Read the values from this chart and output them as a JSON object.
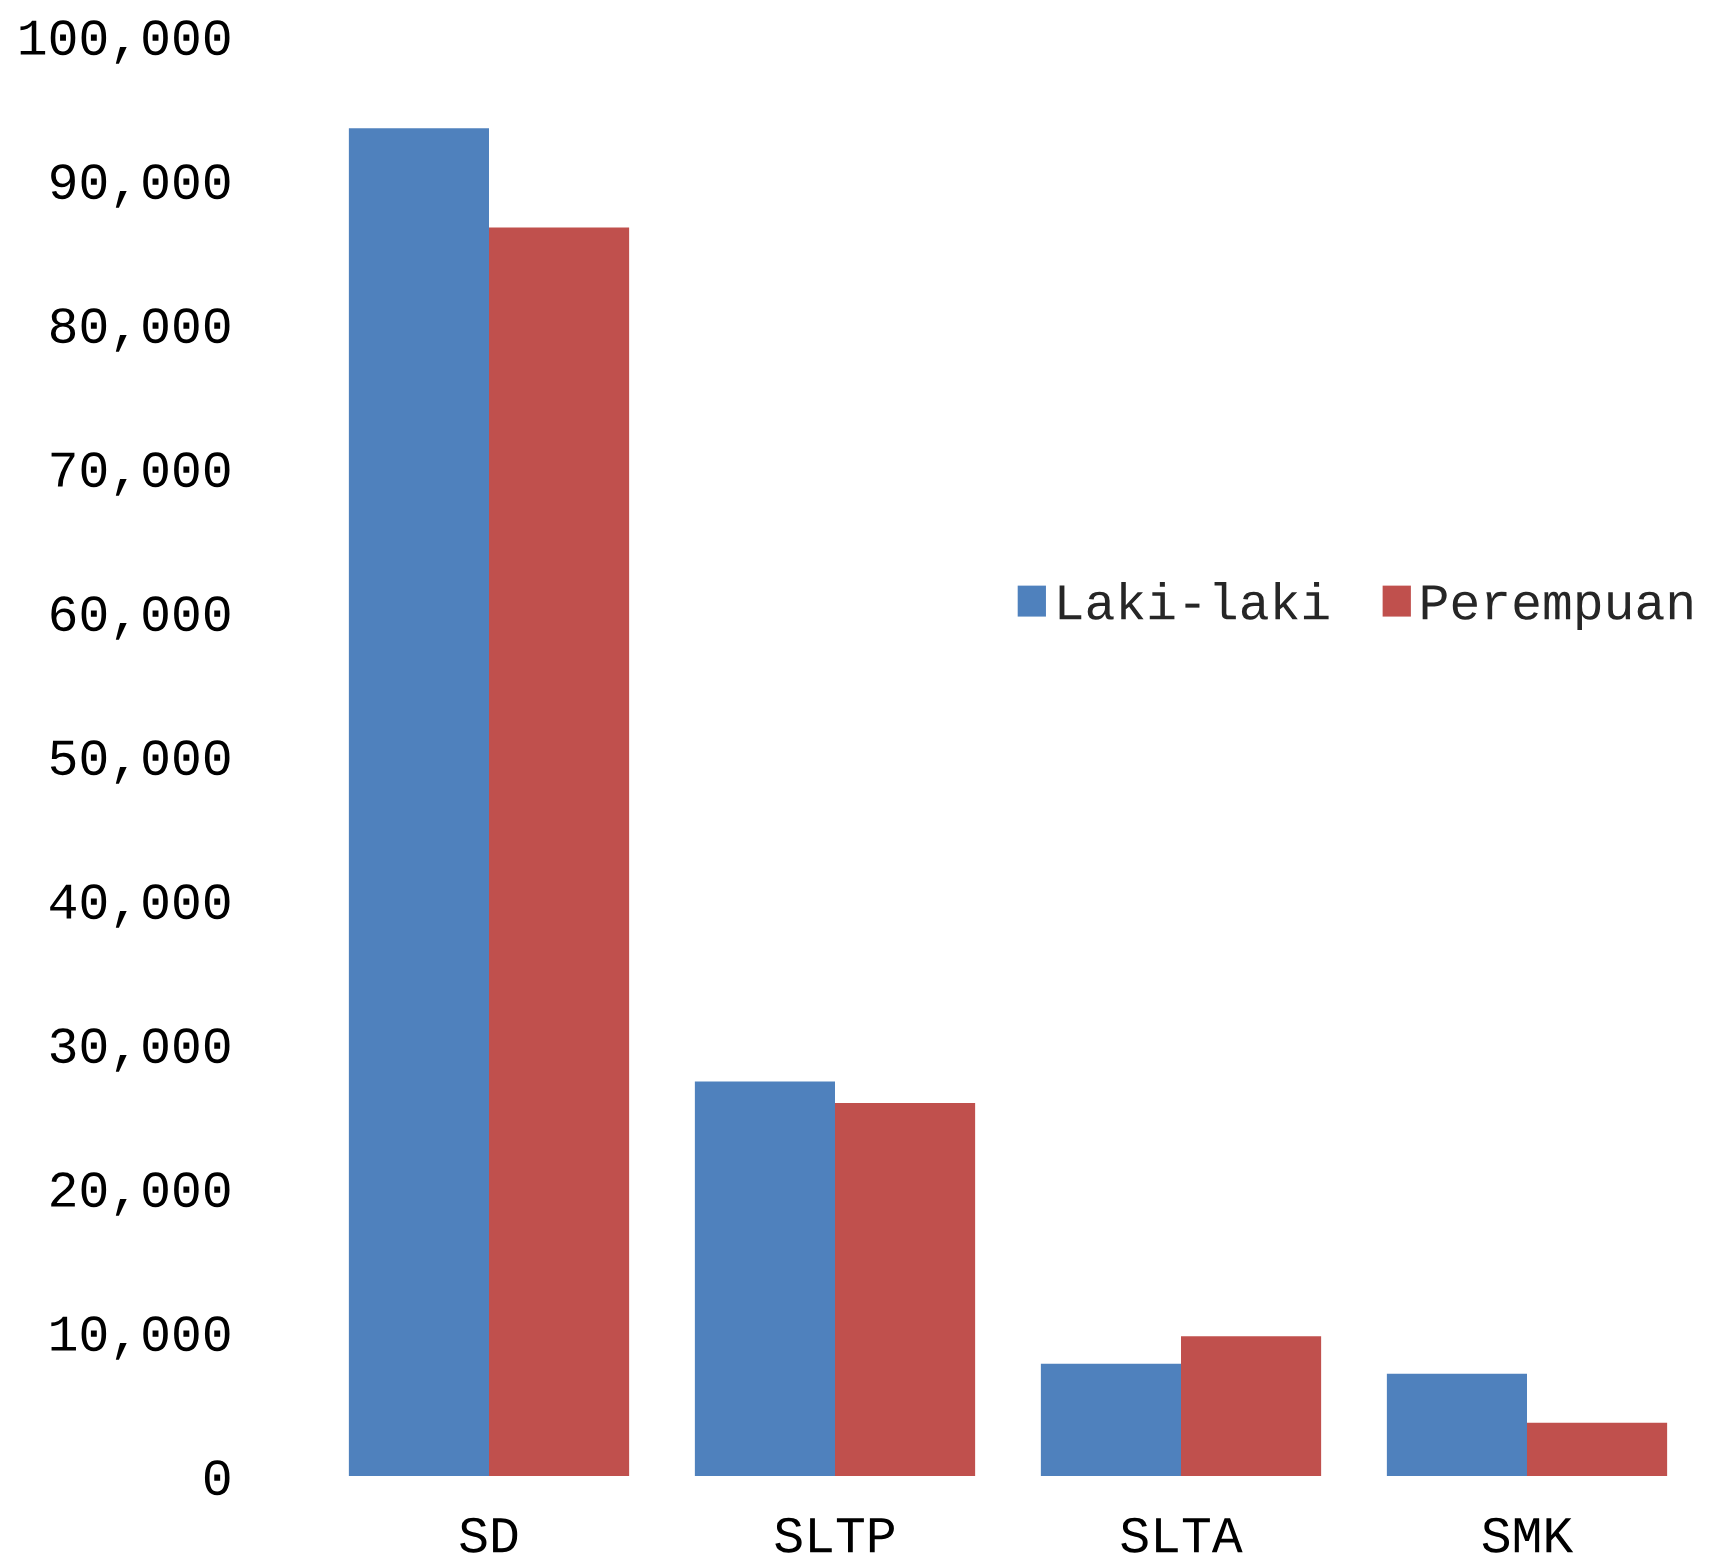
{
  "chart_data": {
    "type": "bar",
    "categories": [
      "SD",
      "SLTP",
      "SLTA",
      "SMK"
    ],
    "series": [
      {
        "name": "Laki-laki",
        "color": "#4f81bd",
        "values": [
          93600,
          27400,
          7800,
          7100
        ]
      },
      {
        "name": "Perempuan",
        "color": "#c0504d",
        "values": [
          86700,
          25900,
          9700,
          3700
        ]
      }
    ],
    "ylim": [
      0,
      100000
    ],
    "yticks": [
      0,
      {
        "value": 10000,
        "label": "10,000"
      },
      {
        "value": 20000,
        "label": "20,000"
      },
      {
        "value": 30000,
        "label": "30,000"
      },
      {
        "value": 40000,
        "label": "40,000"
      },
      {
        "value": 50000,
        "label": "50,000"
      },
      {
        "value": 60000,
        "label": "60,000"
      },
      {
        "value": 70000,
        "label": "70,000"
      },
      {
        "value": 80000,
        "label": "80,000"
      },
      {
        "value": 90000,
        "label": "90,000"
      },
      {
        "value": 100000,
        "label": "100,000"
      }
    ],
    "legend": "right"
  }
}
